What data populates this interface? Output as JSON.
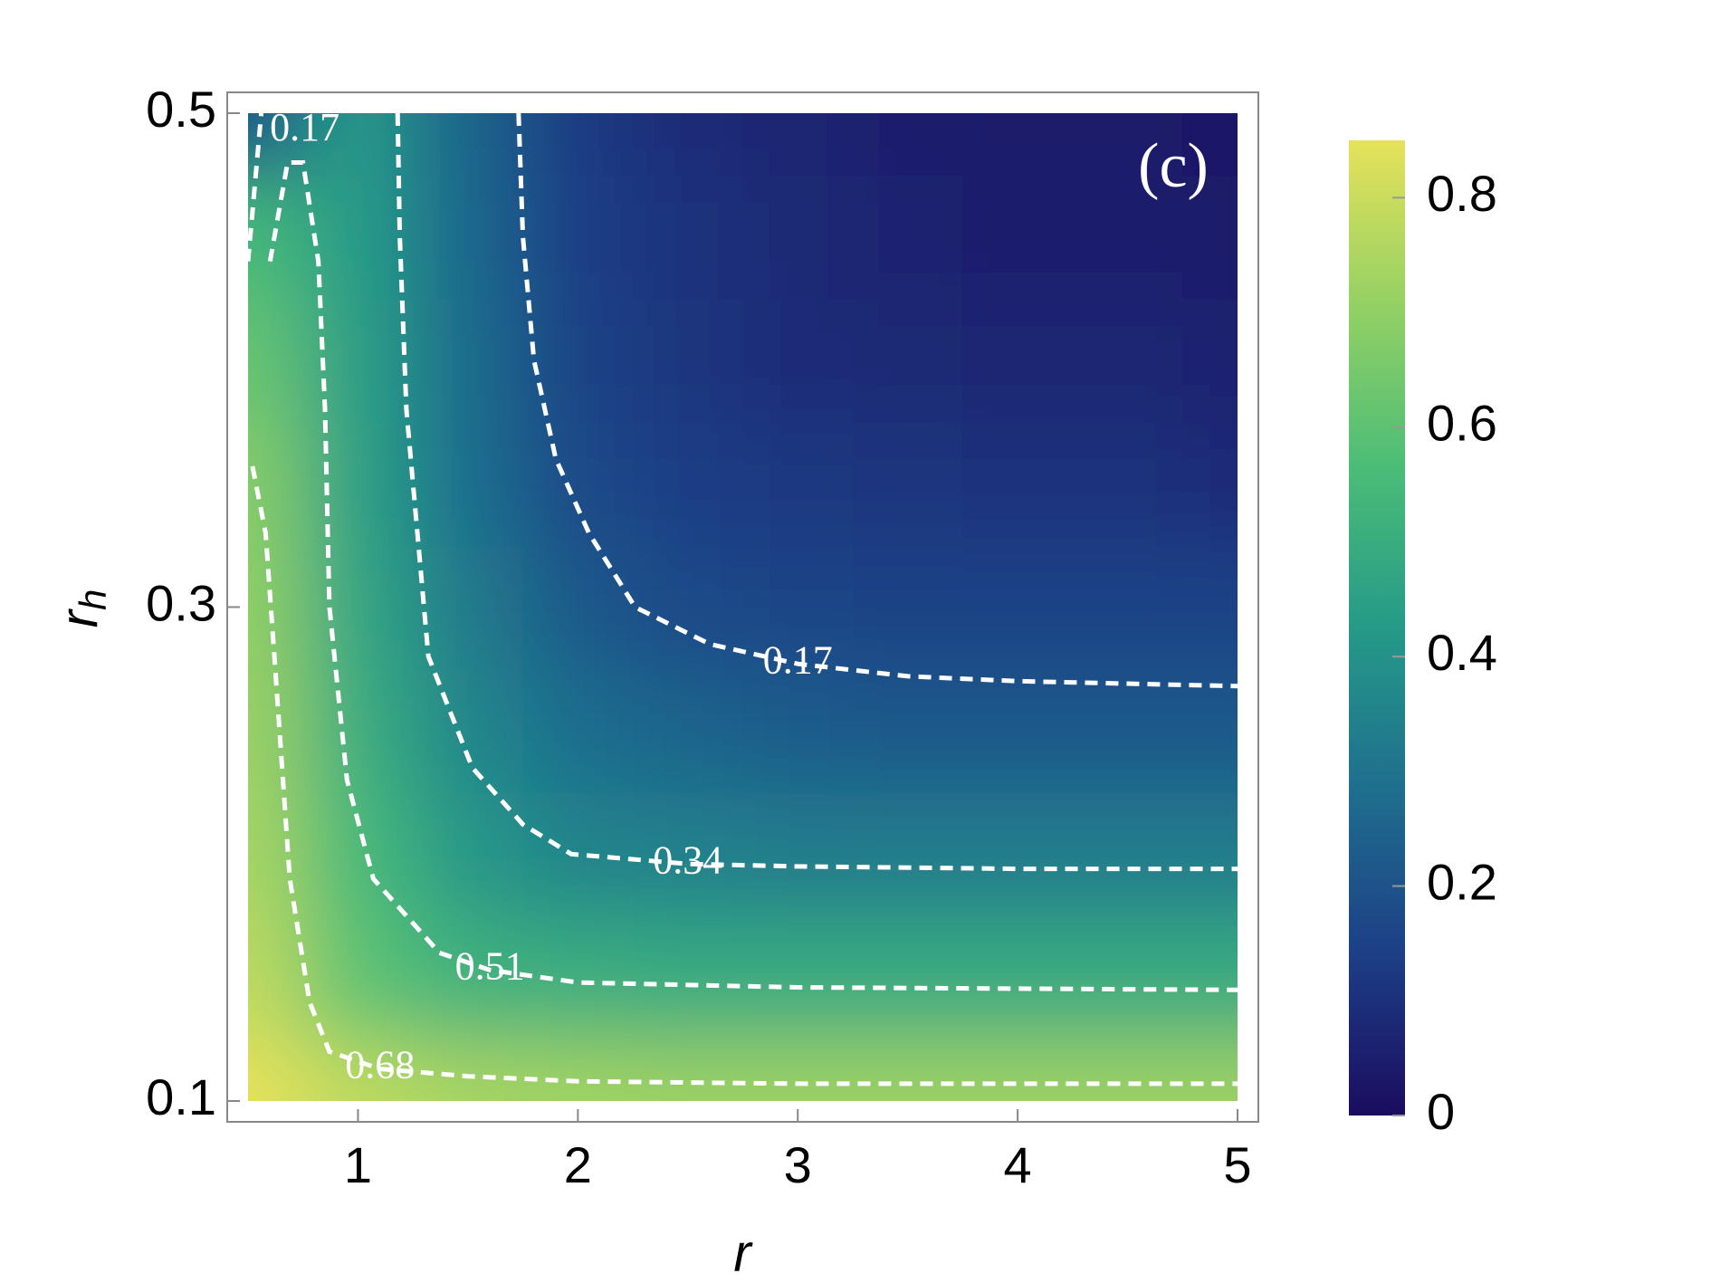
{
  "chart_data": {
    "type": "contour",
    "panel_label": "(c)",
    "xlabel": "r",
    "ylabel": "r",
    "ylabel_subscript": "h",
    "xlim": [
      0.5,
      5
    ],
    "ylim": [
      0.1,
      0.5
    ],
    "xticks": [
      1,
      2,
      3,
      4,
      5
    ],
    "yticks": [
      0.1,
      0.3,
      0.5
    ],
    "colormap": [
      "#1b0c5f",
      "#1d3f86",
      "#1f6e8e",
      "#259a88",
      "#4cbd77",
      "#95d164",
      "#e6e25a"
    ],
    "colorbar": {
      "lim": [
        0,
        0.85
      ],
      "ticks": [
        0,
        0.2,
        0.4,
        0.6,
        0.8
      ]
    },
    "grid_x": [
      0.5,
      1,
      1.5,
      2,
      2.5,
      3,
      3.5,
      4,
      4.5,
      5
    ],
    "grid_y": [
      0.1,
      0.15,
      0.2,
      0.25,
      0.3,
      0.35,
      0.4,
      0.45,
      0.5
    ],
    "z": [
      [
        0.85,
        0.78,
        0.74,
        0.73,
        0.72,
        0.72,
        0.72,
        0.72,
        0.72,
        0.72
      ],
      [
        0.78,
        0.6,
        0.52,
        0.5,
        0.49,
        0.49,
        0.49,
        0.49,
        0.49,
        0.49
      ],
      [
        0.74,
        0.55,
        0.42,
        0.35,
        0.34,
        0.33,
        0.33,
        0.33,
        0.33,
        0.33
      ],
      [
        0.72,
        0.5,
        0.36,
        0.28,
        0.25,
        0.23,
        0.22,
        0.22,
        0.22,
        0.22
      ],
      [
        0.7,
        0.47,
        0.32,
        0.22,
        0.17,
        0.16,
        0.15,
        0.15,
        0.15,
        0.15
      ],
      [
        0.68,
        0.45,
        0.28,
        0.17,
        0.14,
        0.12,
        0.11,
        0.1,
        0.1,
        0.09
      ],
      [
        0.62,
        0.44,
        0.27,
        0.15,
        0.11,
        0.09,
        0.08,
        0.07,
        0.07,
        0.06
      ],
      [
        0.55,
        0.43,
        0.26,
        0.14,
        0.1,
        0.08,
        0.06,
        0.05,
        0.05,
        0.04
      ],
      [
        0.2,
        0.42,
        0.25,
        0.13,
        0.09,
        0.07,
        0.05,
        0.04,
        0.04,
        0.03
      ]
    ],
    "contours": [
      {
        "level": 0.17,
        "x": [
          1.73,
          1.75,
          1.8,
          1.9,
          2.05,
          2.26,
          2.6,
          3,
          3.5,
          4,
          5
        ],
        "y": [
          0.5,
          0.45,
          0.4,
          0.36,
          0.33,
          0.3,
          0.285,
          0.277,
          0.272,
          0.27,
          0.268
        ]
      },
      {
        "level": 0.34,
        "x": [
          1.18,
          1.19,
          1.22,
          1.32,
          1.52,
          1.75,
          1.97,
          2.5,
          3,
          4,
          5
        ],
        "y": [
          0.5,
          0.45,
          0.38,
          0.28,
          0.235,
          0.212,
          0.2,
          0.196,
          0.195,
          0.194,
          0.194
        ]
      },
      {
        "level": 0.51,
        "x": [
          0.6,
          0.68,
          0.75,
          0.82,
          0.85,
          0.87,
          0.95,
          1.07,
          1.37,
          1.6,
          2,
          3,
          5
        ],
        "y": [
          0.44,
          0.48,
          0.48,
          0.44,
          0.38,
          0.3,
          0.23,
          0.19,
          0.16,
          0.153,
          0.148,
          0.146,
          0.145
        ]
      },
      {
        "level": 0.68,
        "x": [
          0.52,
          0.58,
          0.62,
          0.69,
          0.78,
          0.87,
          1.1,
          1.5,
          2,
          3,
          5
        ],
        "y": [
          0.357,
          0.33,
          0.28,
          0.19,
          0.14,
          0.12,
          0.113,
          0.11,
          0.108,
          0.107,
          0.107
        ]
      },
      {
        "level": 0.17,
        "x": [
          0.5,
          0.53,
          0.56
        ],
        "y": [
          0.44,
          0.47,
          0.5
        ]
      }
    ]
  }
}
